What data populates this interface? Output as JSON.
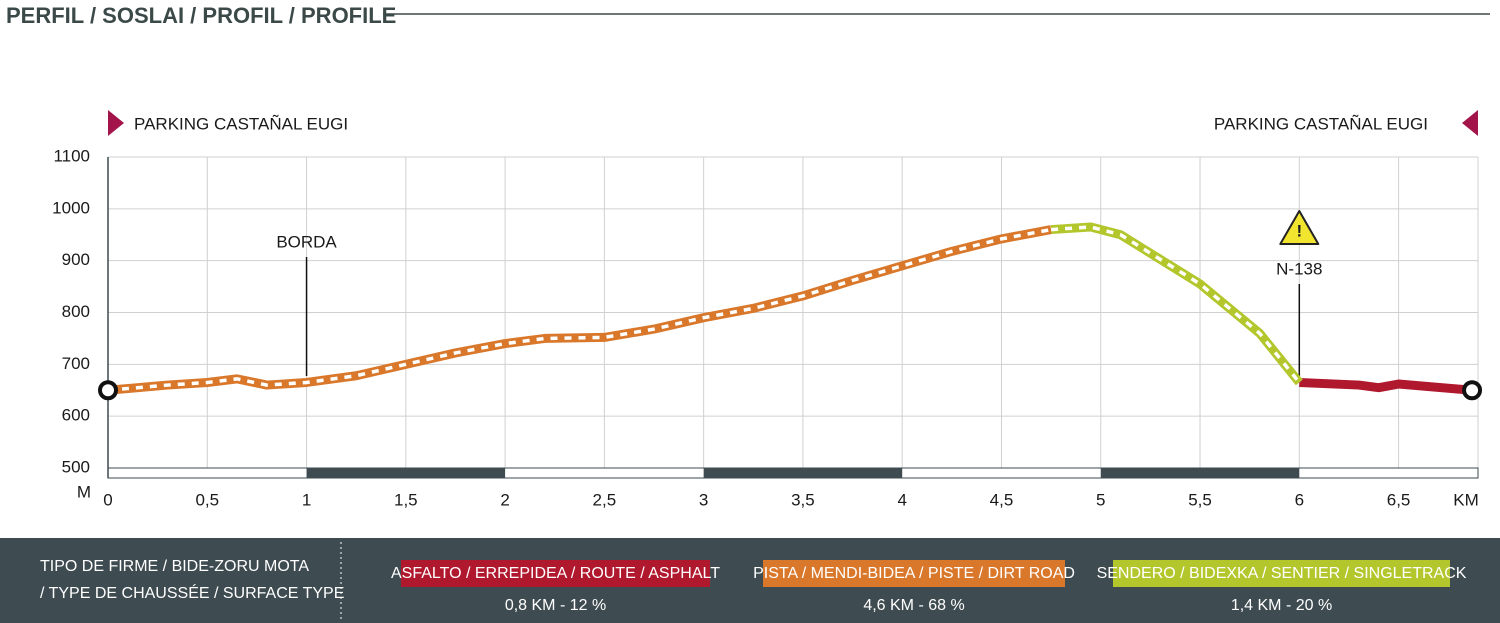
{
  "chart_data": {
    "type": "line",
    "title": "PERFIL / SOSLAI / PROFIL / PROFILE",
    "start_label": "PARKING CASTAÑAL EUGI",
    "end_label": "PARKING CASTAÑAL EUGI",
    "x_axis_label": "KM",
    "y_axis_label": "M",
    "x": [
      0,
      0.3,
      0.5,
      0.65,
      0.8,
      1.0,
      1.25,
      1.5,
      1.75,
      2.0,
      2.2,
      2.5,
      2.75,
      3.0,
      3.25,
      3.5,
      3.75,
      4.0,
      4.25,
      4.5,
      4.75,
      4.95,
      5.1,
      5.5,
      5.8,
      6.0,
      6.3,
      6.4,
      6.5,
      6.87
    ],
    "series": [
      {
        "name": "ASFALTO / ERREPIDEA / ROUTE / ASPHALT",
        "summary": "0,8 KM - 12 %",
        "color": "#b0182e",
        "values": [
          null,
          null,
          null,
          null,
          null,
          null,
          null,
          null,
          null,
          null,
          null,
          null,
          null,
          null,
          null,
          null,
          null,
          null,
          null,
          null,
          null,
          null,
          null,
          null,
          null,
          665,
          660,
          655,
          662,
          650
        ]
      },
      {
        "name": "PISTA / MENDI-BIDEA / PISTE / DIRT ROAD",
        "summary": "4,6 KM - 68 %",
        "color": "#d9772a",
        "values": [
          650,
          660,
          665,
          672,
          660,
          665,
          678,
          700,
          722,
          740,
          750,
          752,
          768,
          790,
          808,
          832,
          862,
          890,
          918,
          942,
          960,
          null,
          null,
          null,
          null,
          null,
          null,
          null,
          null,
          null
        ]
      },
      {
        "name": "SENDERO  / BIDEXKA / SENTIER / SINGLETRACK",
        "summary": "1,4 KM - 20 %",
        "color": "#b3c72d",
        "values": [
          null,
          null,
          null,
          null,
          null,
          null,
          null,
          null,
          null,
          null,
          null,
          null,
          null,
          null,
          null,
          null,
          null,
          null,
          null,
          null,
          960,
          965,
          950,
          855,
          760,
          665,
          null,
          null,
          null,
          null
        ]
      }
    ],
    "legend_title": [
      "TIPO DE FIRME / BIDE-ZORU MOTA",
      "/ TYPE DE CHAUSSÉE / SURFACE TYPE"
    ],
    "annotations": [
      {
        "text": "BORDA",
        "x": 1
      },
      {
        "text": "N-138",
        "x": 6
      }
    ],
    "xlim": [
      0,
      6.9
    ],
    "ylim": [
      500,
      1100
    ],
    "xticks": [
      0,
      {
        "value": 0.5,
        "label": "0,5"
      },
      1,
      {
        "value": 1.5,
        "label": "1,5"
      },
      2,
      {
        "value": 2.5,
        "label": "2,5"
      },
      3,
      {
        "value": 3.5,
        "label": "3,5"
      },
      4,
      {
        "value": 4.5,
        "label": "4,5"
      },
      5,
      {
        "value": 5.5,
        "label": "5,5"
      },
      6,
      {
        "value": 6.5,
        "label": "6,5"
      }
    ],
    "yticks": [
      500,
      600,
      700,
      800,
      900,
      1000,
      1100
    ],
    "grid": true
  }
}
